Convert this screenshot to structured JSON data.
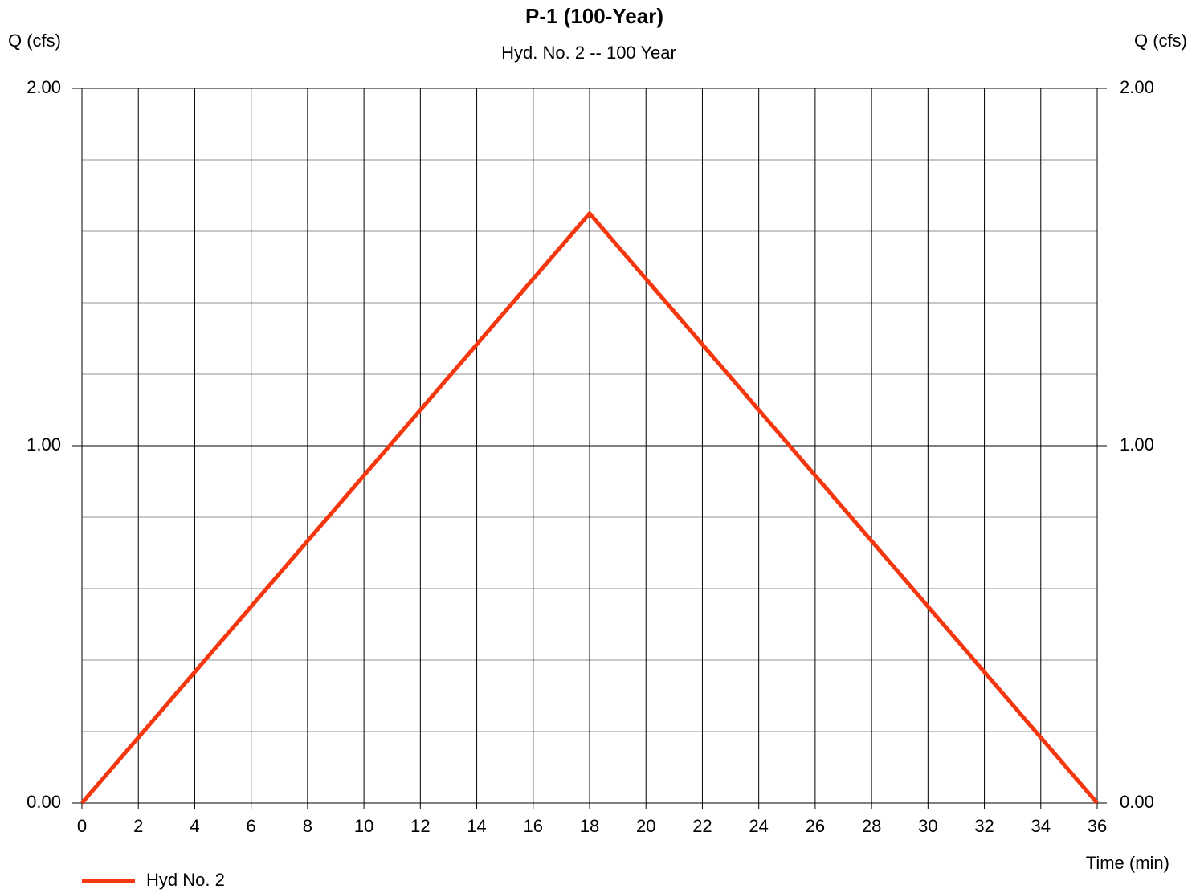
{
  "chart_data": {
    "type": "line",
    "title": "P-1 (100-Year)",
    "subtitle": "Hyd. No. 2 -- 100 Year",
    "y_label": "Q (cfs)",
    "y2_label": "Q (cfs)",
    "x_label": "Time (min)",
    "x": [
      0,
      18,
      36
    ],
    "series": [
      {
        "name": "Hyd No. 2",
        "color": "#f5370f",
        "values": [
          0,
          1.65,
          0
        ]
      }
    ],
    "xlim": [
      0,
      36
    ],
    "xticks": [
      0,
      2,
      4,
      6,
      8,
      10,
      12,
      14,
      16,
      18,
      20,
      22,
      24,
      26,
      28,
      30,
      32,
      34,
      36
    ],
    "ylim": [
      0,
      2
    ],
    "yticks": [
      {
        "value": 0,
        "label": "0.00"
      },
      {
        "value": 1,
        "label": "1.00"
      },
      {
        "value": 2,
        "label": "2.00"
      }
    ],
    "y_minor_ticks": [
      0.2,
      0.4,
      0.6,
      0.8,
      1.2,
      1.4,
      1.6,
      1.8
    ],
    "y2lim": [
      0,
      2
    ],
    "y2ticks": [
      {
        "value": 0,
        "label": "0.00"
      },
      {
        "value": 1,
        "label": "1.00"
      },
      {
        "value": 2,
        "label": "2.00"
      }
    ],
    "grid": true,
    "legend": "bottom-left"
  }
}
